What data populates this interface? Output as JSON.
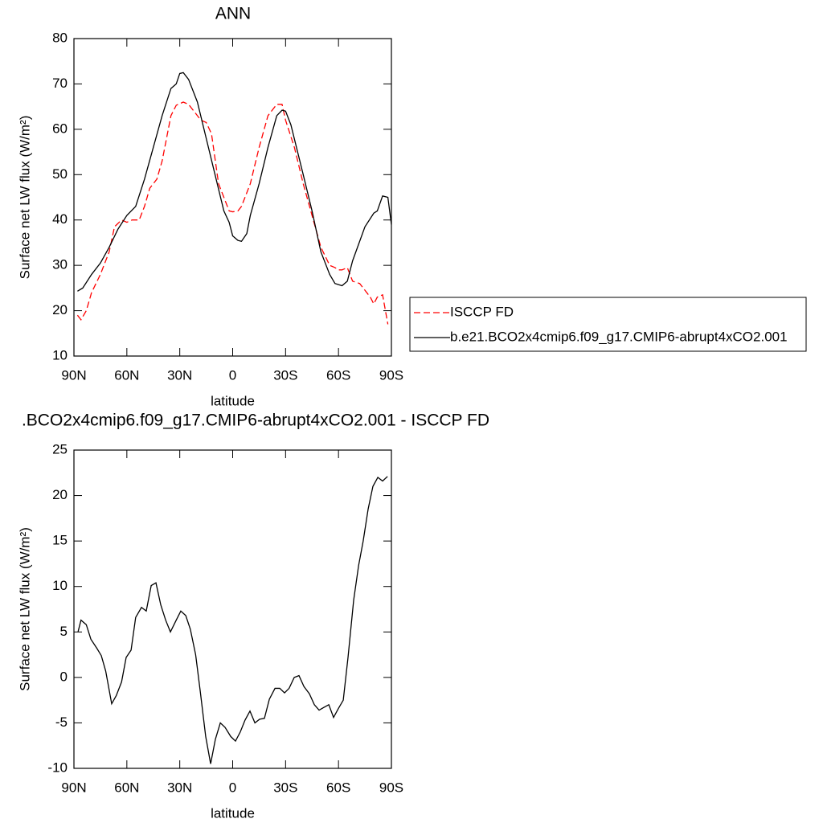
{
  "chart_data": [
    {
      "type": "line",
      "title": "ANN",
      "xlabel": "latitude",
      "ylabel": "Surface net LW flux (W/m²)",
      "xlim": [
        90,
        -90
      ],
      "xticks": [
        {
          "value": 90,
          "label": "90N"
        },
        {
          "value": 60,
          "label": "60N"
        },
        {
          "value": 30,
          "label": "30N"
        },
        0,
        {
          "value": -30,
          "label": "30S"
        },
        {
          "value": -60,
          "label": "60S"
        },
        {
          "value": -90,
          "label": "90S"
        }
      ],
      "ylim": [
        10,
        80
      ],
      "yticks": [
        10,
        20,
        30,
        40,
        50,
        60,
        70,
        80
      ],
      "legend": "right",
      "series": [
        {
          "name": "ISCCP FD",
          "color": "#ff0000",
          "dashed": true,
          "x": [
            88,
            86,
            83,
            80,
            75,
            70,
            67,
            63,
            60,
            57,
            53,
            50,
            47,
            43,
            40,
            35,
            32,
            28,
            25,
            22,
            18,
            15,
            12,
            8,
            5,
            2,
            0,
            -3,
            -5,
            -10,
            -15,
            -20,
            -25,
            -28,
            -30,
            -35,
            -40,
            -45,
            -50,
            -55,
            -58,
            -60,
            -62,
            -65,
            -68,
            -72,
            -78,
            -80,
            -82,
            -85,
            -88
          ],
          "values": [
            19,
            18,
            20,
            24,
            28,
            33,
            38.5,
            40,
            39.5,
            40,
            40,
            43,
            47,
            49,
            53,
            63,
            65.3,
            66,
            65.5,
            64,
            62,
            61.5,
            59,
            48,
            45,
            42,
            41.8,
            42,
            43,
            48,
            56,
            63,
            65.5,
            65.5,
            62,
            56,
            48,
            41,
            34,
            30,
            29.5,
            29,
            29,
            29.5,
            26.5,
            26,
            23,
            21.5,
            23,
            23.5,
            17
          ]
        },
        {
          "name": "b.e21.BCO2x4cmip6.f09_g17.CMIP6-abrupt4xCO2.001",
          "color": "#000000",
          "dashed": false,
          "x": [
            88,
            85,
            80,
            75,
            70,
            65,
            60,
            55,
            50,
            45,
            40,
            35,
            32,
            30,
            28,
            25,
            20,
            15,
            10,
            5,
            2,
            0,
            -3,
            -5,
            -8,
            -10,
            -15,
            -20,
            -25,
            -28,
            -30,
            -33,
            -40,
            -45,
            -50,
            -55,
            -58,
            -62,
            -65,
            -68,
            -75,
            -80,
            -82,
            -85,
            -88,
            -90
          ],
          "values": [
            24.3,
            25,
            28,
            30.5,
            34,
            38,
            41,
            43,
            49,
            56,
            63,
            69,
            70,
            72.3,
            72.5,
            71,
            66,
            58,
            50,
            42,
            39.5,
            36.5,
            35.5,
            35.3,
            37,
            41,
            48,
            56,
            63,
            64.2,
            64,
            61,
            50,
            42,
            33,
            28,
            26,
            25.5,
            26.5,
            31,
            38.5,
            41.5,
            42,
            45.3,
            45,
            39
          ]
        }
      ]
    },
    {
      "type": "line",
      "title": ".BCO2x4cmip6.f09_g17.CMIP6-abrupt4xCO2.001 - ISCCP FD",
      "xlabel": "latitude",
      "ylabel": "Surface net LW flux (W/m²)",
      "xlim": [
        90,
        -90
      ],
      "xticks": [
        {
          "value": 90,
          "label": "90N"
        },
        {
          "value": 60,
          "label": "60N"
        },
        {
          "value": 30,
          "label": "30N"
        },
        0,
        {
          "value": -30,
          "label": "30S"
        },
        {
          "value": -60,
          "label": "60S"
        },
        {
          "value": -90,
          "label": "90S"
        }
      ],
      "ylim": [
        -10,
        25
      ],
      "yticks": [
        -10,
        -5,
        0,
        5,
        10,
        15,
        20,
        25
      ],
      "series": [
        {
          "color": "#000000",
          "dashed": false,
          "x": [
            87.7,
            86,
            83,
            80.4,
            77,
            74.5,
            72,
            68.6,
            66,
            63,
            60.4,
            57.6,
            55,
            51.7,
            49,
            46.2,
            43.5,
            40.8,
            38,
            35.3,
            32,
            29.4,
            26.6,
            24,
            21,
            18.4,
            15.3,
            12.5,
            9.8,
            7,
            4.3,
            1.1,
            -1.6,
            -4.3,
            -7,
            -9.8,
            -12.6,
            -15.3,
            -18,
            -20.8,
            -24,
            -26.7,
            -29.4,
            -32,
            -34.9,
            -37.6,
            -40.4,
            -43.5,
            -46.3,
            -49,
            -51.7,
            -54.5,
            -57.2,
            -60,
            -62.7,
            -65.4,
            -68.6,
            -71.4,
            -74,
            -76.8,
            -79.5,
            -82.3,
            -85,
            -87.8
          ],
          "values": [
            5,
            6.3,
            5.8,
            4.2,
            3.2,
            2.4,
            0.7,
            -2.9,
            -2,
            -0.5,
            2.2,
            3,
            6.6,
            7.7,
            7.3,
            10.1,
            10.4,
            8,
            6.3,
            5,
            6.3,
            7.3,
            6.8,
            5.3,
            2.5,
            -1.5,
            -6.5,
            -9.5,
            -6.8,
            -5,
            -5.5,
            -6.5,
            -7,
            -6,
            -4.7,
            -3.7,
            -5,
            -4.6,
            -4.5,
            -2.4,
            -1.2,
            -1.2,
            -1.7,
            -1.2,
            0,
            0.2,
            -1,
            -1.8,
            -3,
            -3.6,
            -3.3,
            -3,
            -4.4,
            -3.4,
            -2.5,
            2.2,
            8.5,
            12.3,
            15,
            18.5,
            21,
            22,
            21.6,
            22.1
          ]
        }
      ]
    }
  ]
}
